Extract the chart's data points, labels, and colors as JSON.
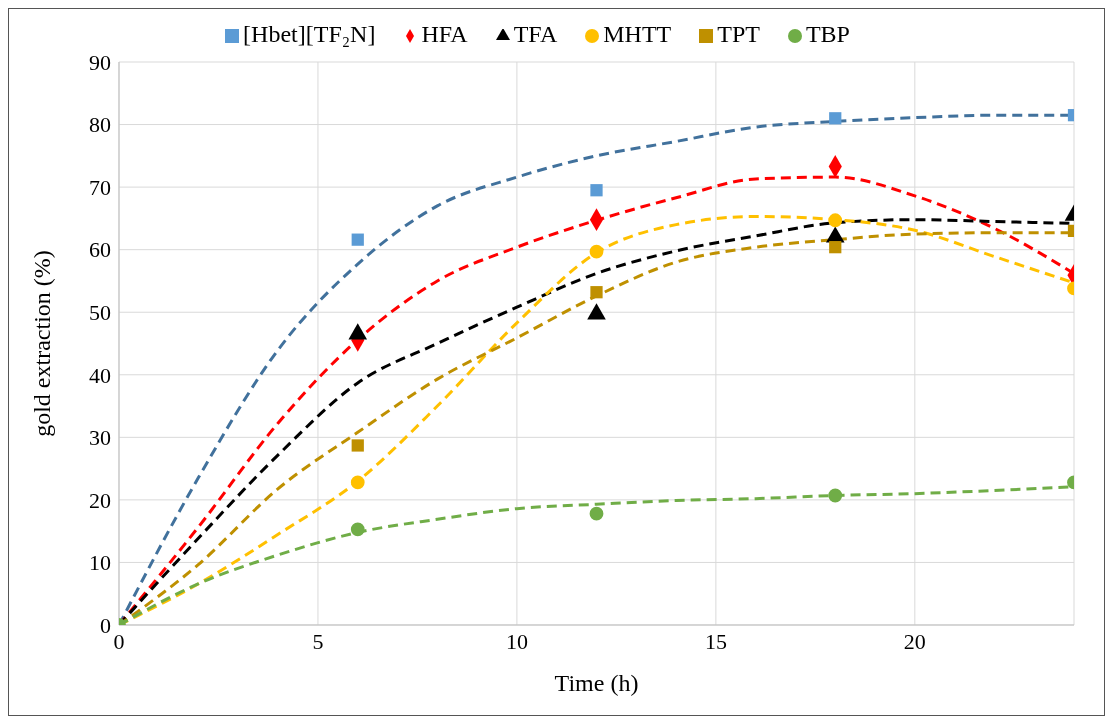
{
  "chart_data": {
    "type": "scatter",
    "xlabel": "Time (h)",
    "ylabel": "gold extraction (%)",
    "x": [
      0,
      6,
      12,
      18,
      24
    ],
    "xlim": [
      0,
      24
    ],
    "xticks": [
      0,
      5,
      10,
      15,
      20
    ],
    "ylim": [
      0,
      90
    ],
    "yticks": [
      0,
      10,
      20,
      30,
      40,
      50,
      60,
      70,
      80,
      90
    ],
    "grid": true,
    "legend": "top",
    "series": [
      {
        "name": "[Hbet][TF₂N]",
        "color": "#5b9bd5",
        "marker": "square",
        "values": [
          null,
          61.6,
          69.5,
          81,
          81.5
        ]
      },
      {
        "name": "HFA",
        "color": "#ff0000",
        "marker": "diamond",
        "values": [
          null,
          45.5,
          64.8,
          73.3,
          55.9
        ]
      },
      {
        "name": "TFA",
        "color": "#000000",
        "marker": "triangle",
        "values": [
          null,
          46.5,
          49.7,
          62,
          65.5
        ]
      },
      {
        "name": "MHTT",
        "color": "#ffc000",
        "marker": "circle",
        "values": [
          null,
          22.8,
          59.7,
          64.7,
          53.8
        ]
      },
      {
        "name": "TPT",
        "color": "#bf9000",
        "marker": "square",
        "values": [
          null,
          28.7,
          53.2,
          60.4,
          63
        ]
      },
      {
        "name": "TBP",
        "color": "#70ad47",
        "marker": "circle",
        "values": [
          0,
          15.3,
          17.8,
          20.7,
          22.8
        ]
      },
      {
        "type": "line",
        "color": "#41719c",
        "line_style": "dashed",
        "x": [
          0,
          2,
          4,
          6,
          8,
          10,
          12,
          14,
          16,
          18,
          20,
          22,
          24
        ],
        "values": [
          0,
          23.6,
          44,
          57.7,
          67,
          71.6,
          75,
          77.3,
          79.6,
          80.5,
          81.1,
          81.5,
          81.5
        ]
      },
      {
        "type": "line",
        "color": "#ff0000",
        "line_style": "dashed",
        "x": [
          0,
          2,
          4,
          6,
          8,
          10,
          12,
          14,
          16,
          18,
          20,
          22,
          24
        ],
        "values": [
          0,
          15.7,
          32.3,
          45.6,
          55,
          60.4,
          64.7,
          68.3,
          71.3,
          71.6,
          68.6,
          63.4,
          56.2
        ]
      },
      {
        "type": "line",
        "color": "#000000",
        "line_style": "dashed",
        "x": [
          0,
          2,
          4,
          6,
          8,
          10,
          12,
          14,
          16,
          18,
          20,
          22,
          24
        ],
        "values": [
          0,
          13.9,
          27.2,
          38.7,
          45,
          50.8,
          56.2,
          59.8,
          62.2,
          64.3,
          64.8,
          64.5,
          64.2
        ]
      },
      {
        "type": "line",
        "color": "#ffc000",
        "line_style": "dashed",
        "x": [
          0,
          2,
          4,
          6,
          8,
          10,
          12,
          14,
          16,
          18,
          20,
          22,
          24
        ],
        "values": [
          0,
          6.6,
          14.5,
          23,
          35,
          48.3,
          59.5,
          64,
          65.3,
          64.8,
          63.1,
          58.9,
          54.7
        ]
      },
      {
        "type": "line",
        "color": "#bf9000",
        "line_style": "dashed",
        "x": [
          0,
          2,
          4,
          6,
          8,
          10,
          12,
          14,
          16,
          18,
          20,
          22,
          24
        ],
        "values": [
          0,
          9.7,
          21.8,
          30.8,
          39.3,
          45.9,
          52.6,
          58,
          60.4,
          61.6,
          62.5,
          62.7,
          62.7
        ]
      },
      {
        "type": "line",
        "color": "#70ad47",
        "line_style": "dashed",
        "x": [
          0,
          2,
          4,
          6,
          8,
          10,
          12,
          14,
          16,
          18,
          20,
          22,
          24
        ],
        "values": [
          0,
          6.6,
          11.2,
          14.8,
          16.9,
          18.6,
          19.3,
          19.9,
          20.2,
          20.7,
          21,
          21.5,
          22.1
        ]
      }
    ]
  }
}
